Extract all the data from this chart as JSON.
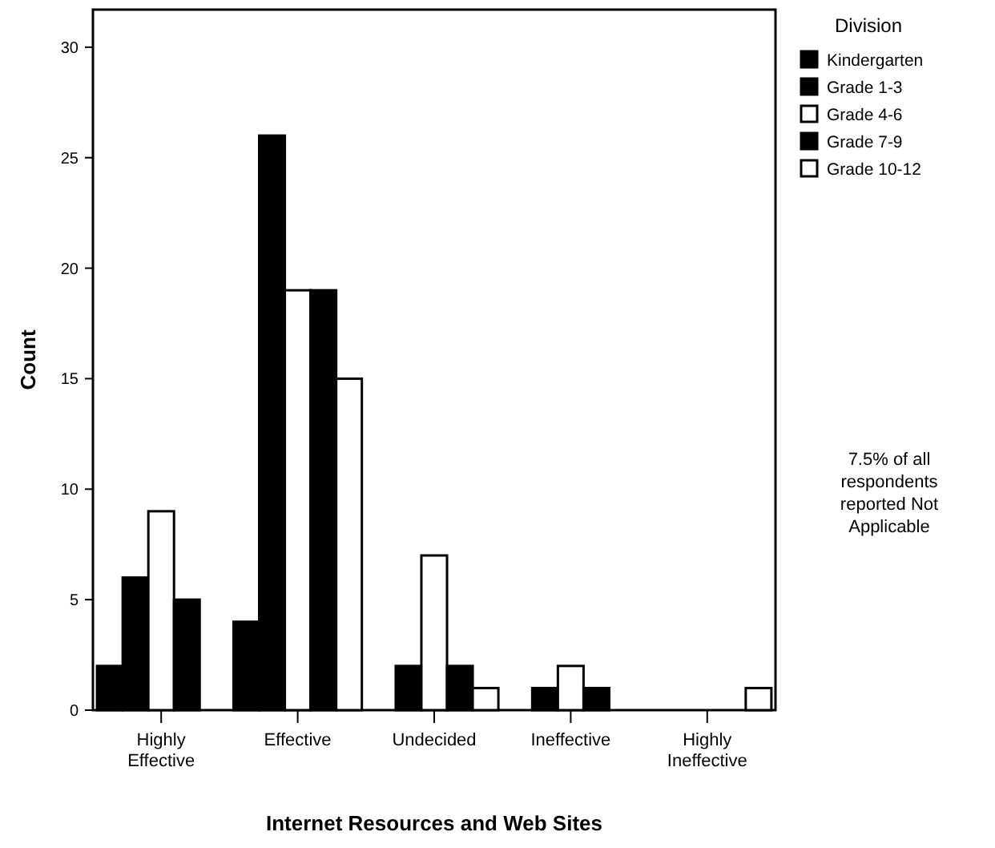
{
  "chart_data": {
    "type": "bar",
    "xlabel": "Internet Resources and Web Sites",
    "ylabel": "Count",
    "legend_title": "Division",
    "legend": "right",
    "categories": [
      "Highly Effective",
      "Effective",
      "Undecided",
      "Ineffective",
      "Highly Ineffective"
    ],
    "ylim": [
      0,
      31.7
    ],
    "yticks": [
      0,
      5,
      10,
      15,
      20,
      25,
      30
    ],
    "grid": false,
    "series": [
      {
        "name": "Kindergarten",
        "color": "#000000",
        "values": [
          2,
          4,
          0,
          0,
          0
        ]
      },
      {
        "name": "Grade 1-3",
        "color": "#000000",
        "values": [
          6,
          26,
          2,
          1,
          0
        ]
      },
      {
        "name": "Grade 4-6",
        "color": "#ffffff",
        "values": [
          9,
          19,
          7,
          2,
          0
        ]
      },
      {
        "name": "Grade 7-9",
        "color": "#000000",
        "values": [
          5,
          19,
          2,
          1,
          0
        ]
      },
      {
        "name": "Grade 10-12",
        "color": "#ffffff",
        "values": [
          0,
          15,
          1,
          0,
          1
        ]
      }
    ],
    "annotations": [
      "7.5% of all respondents reported Not Applicable"
    ]
  }
}
